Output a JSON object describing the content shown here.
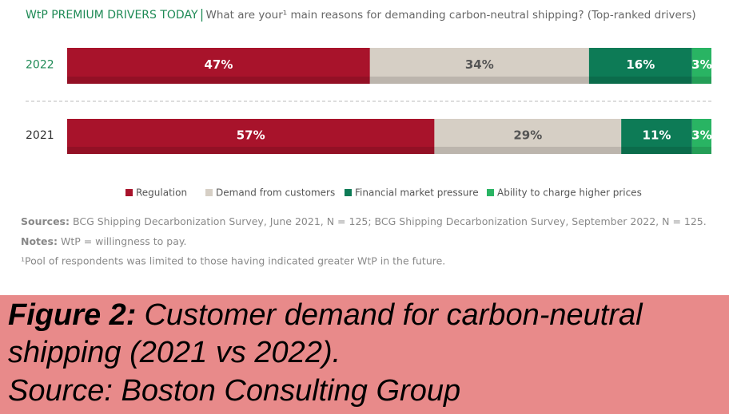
{
  "chart_data": {
    "type": "stacked-bar-horizontal",
    "title": "WtP PREMIUM DRIVERS TODAY",
    "subtitle": "What are your¹ main reasons for demanding carbon-neutral shipping? (Top-ranked drivers)",
    "categories": [
      "2022",
      "2021"
    ],
    "xlim": [
      0,
      100
    ],
    "series": [
      {
        "name": "Regulation",
        "color": "#a8132b",
        "values": [
          47,
          57
        ],
        "value_labels": [
          "47%",
          "57%"
        ]
      },
      {
        "name": "Demand from customers",
        "color": "#d6cfc5",
        "values": [
          34,
          29
        ],
        "value_labels": [
          "34%",
          "29%"
        ]
      },
      {
        "name": "Financial market pressure",
        "color": "#0d7b56",
        "values": [
          16,
          11
        ],
        "value_labels": [
          "16%",
          "11%"
        ]
      },
      {
        "name": "Ability to charge higher prices",
        "color": "#29b463",
        "values": [
          3,
          3
        ],
        "value_labels": [
          "3%",
          "3%"
        ]
      }
    ]
  },
  "notes": {
    "sources_label": "Sources:",
    "sources": "BCG Shipping Decarbonization Survey, June 2021, N = 125; BCG Shipping Decarbonization Survey, September 2022, N = 125.",
    "notes_label": "Notes:",
    "notes": "WtP = willingness to pay.",
    "footnote": "¹Pool of respondents was limited to those having indicated greater WtP in the future."
  },
  "caption": {
    "label": "Figure 2:",
    "lines": [
      "Customer demand for carbon-neutral",
      "shipping (2021 vs 2022).",
      "Source: Boston Consulting Group"
    ]
  }
}
